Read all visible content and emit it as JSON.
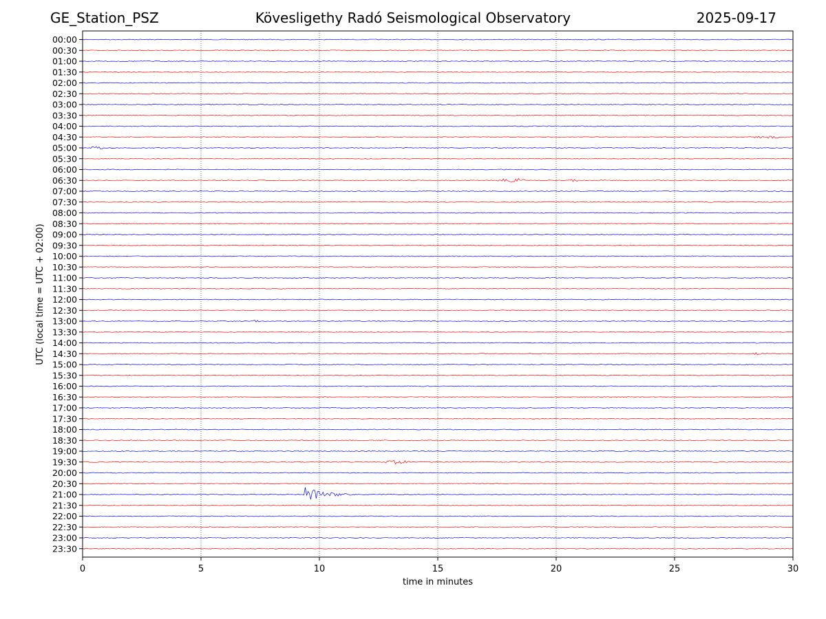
{
  "header": {
    "station": "GE_Station_PSZ",
    "observatory": "Kövesligethy Radó Seismological Observatory",
    "date": "2025-09-17"
  },
  "chart_data": {
    "type": "line",
    "title": "Kövesligethy Radó Seismological Observatory",
    "xlabel": "time in minutes",
    "ylabel": "UTC (local time = UTC + 02:00)",
    "xlim": [
      0,
      30
    ],
    "x_ticks": [
      0,
      5,
      10,
      15,
      20,
      25,
      30
    ],
    "grid": "vertical dotted lines at x ticks",
    "row_colors": [
      "#0000ff",
      "#ff0000"
    ],
    "rows": [
      "00:00",
      "00:30",
      "01:00",
      "01:30",
      "02:00",
      "02:30",
      "03:00",
      "03:30",
      "04:00",
      "04:30",
      "05:00",
      "05:30",
      "06:00",
      "06:30",
      "07:00",
      "07:30",
      "08:00",
      "08:30",
      "09:00",
      "09:30",
      "10:00",
      "10:30",
      "11:00",
      "11:30",
      "12:00",
      "12:30",
      "13:00",
      "13:30",
      "14:00",
      "14:30",
      "15:00",
      "15:30",
      "16:00",
      "16:30",
      "17:00",
      "17:30",
      "18:00",
      "18:30",
      "19:00",
      "19:30",
      "20:00",
      "20:30",
      "21:00",
      "21:30",
      "22:00",
      "22:30",
      "23:00",
      "23:30"
    ],
    "events": [
      {
        "row": "04:30",
        "start_min": 28.0,
        "end_min": 30.0,
        "amplitude": 2
      },
      {
        "row": "05:00",
        "start_min": 0.0,
        "end_min": 1.2,
        "amplitude": 2
      },
      {
        "row": "06:30",
        "start_min": 17.4,
        "end_min": 18.8,
        "amplitude": 4
      },
      {
        "row": "06:30",
        "start_min": 20.4,
        "end_min": 21.2,
        "amplitude": 2
      },
      {
        "row": "13:00",
        "start_min": 7.1,
        "end_min": 7.6,
        "amplitude": 2
      },
      {
        "row": "14:30",
        "start_min": 28.2,
        "end_min": 29.0,
        "amplitude": 2
      },
      {
        "row": "19:30",
        "start_min": 12.5,
        "end_min": 14.0,
        "amplitude": 3
      },
      {
        "row": "21:00",
        "start_min": 9.3,
        "end_min": 12.5,
        "amplitude": 14
      }
    ]
  }
}
